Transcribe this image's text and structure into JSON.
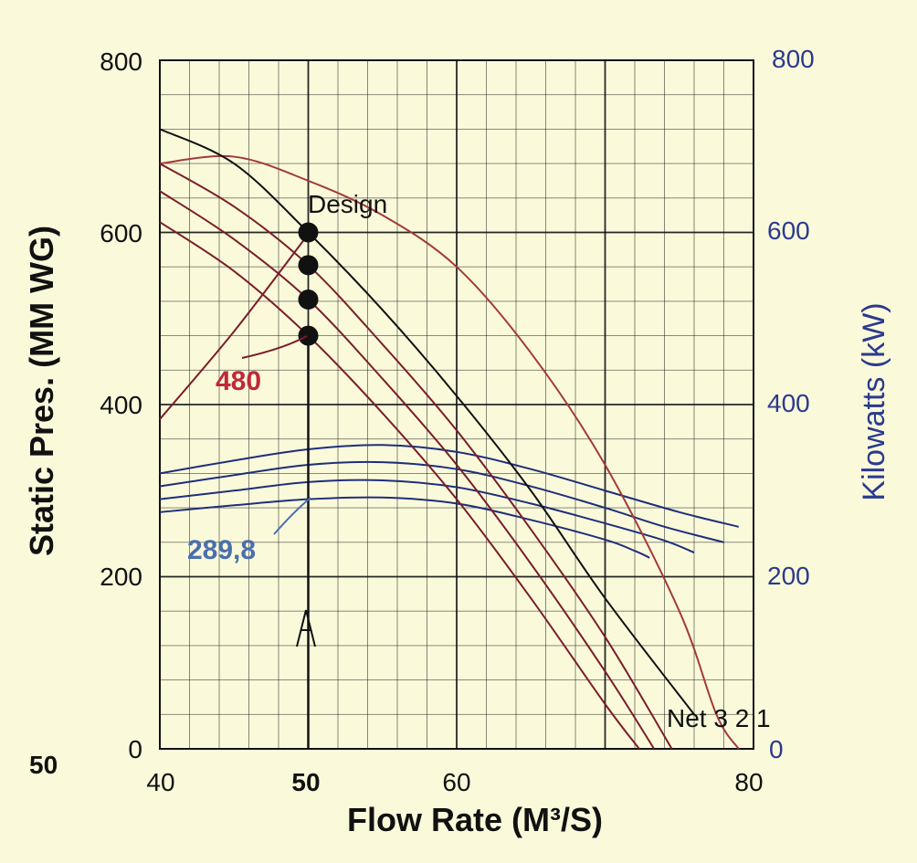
{
  "colors": {
    "background": "#fafadb",
    "grid": "#111111",
    "pressure_curve": "#7a1e2a",
    "design_curve": "#a33a3a",
    "system_curve": "#111111",
    "power_curve": "#1e2f7a",
    "right_axis_text": "#2b3a8c",
    "label_480": "#c0283a",
    "label_289": "#4a6fae"
  },
  "chart_data": {
    "type": "line",
    "title": "",
    "xlabel": "Flow Rate (M³/S)",
    "ylabel_left": "Static Pres. (MM WG)",
    "ylabel_right": "Kilowatts (kW)",
    "xlim": [
      40,
      80
    ],
    "ylim_left": [
      0,
      800
    ],
    "ylim_right": [
      0,
      800
    ],
    "x_ticks": [
      "40",
      "50",
      "60",
      "80"
    ],
    "y_left_ticks": [
      "0",
      "200",
      "400",
      "600",
      "800"
    ],
    "y_right_ticks": [
      "0",
      "200",
      "400",
      "600",
      "800"
    ],
    "grid": true,
    "pressure_series": [
      {
        "name": "Net",
        "points": [
          [
            40,
            720
          ],
          [
            45,
            680
          ],
          [
            50,
            600
          ],
          [
            55,
            510
          ],
          [
            60,
            410
          ],
          [
            65,
            300
          ],
          [
            70,
            175
          ],
          [
            76,
            40
          ]
        ]
      },
      {
        "name": "3",
        "points": [
          [
            40,
            680
          ],
          [
            45,
            630
          ],
          [
            50,
            562
          ],
          [
            55,
            470
          ],
          [
            60,
            370
          ],
          [
            65,
            255
          ],
          [
            70,
            130
          ],
          [
            74.5,
            0
          ]
        ]
      },
      {
        "name": "2",
        "points": [
          [
            40,
            648
          ],
          [
            45,
            592
          ],
          [
            50,
            522
          ],
          [
            55,
            430
          ],
          [
            60,
            330
          ],
          [
            65,
            215
          ],
          [
            70,
            90
          ],
          [
            73.3,
            0
          ]
        ]
      },
      {
        "name": "1",
        "points": [
          [
            40,
            612
          ],
          [
            45,
            555
          ],
          [
            50,
            480
          ],
          [
            55,
            390
          ],
          [
            60,
            290
          ],
          [
            65,
            175
          ],
          [
            70,
            52
          ],
          [
            72.3,
            0
          ]
        ]
      }
    ],
    "design_curve": {
      "points": [
        [
          40,
          680
        ],
        [
          45,
          688
        ],
        [
          50,
          660
        ],
        [
          55,
          620
        ],
        [
          60,
          560
        ],
        [
          65,
          460
        ],
        [
          70,
          330
        ],
        [
          75,
          160
        ],
        [
          77.5,
          40
        ],
        [
          79,
          0
        ]
      ]
    },
    "system_curve": {
      "points": [
        [
          40,
          383
        ],
        [
          45,
          485
        ],
        [
          50,
          598
        ]
      ]
    },
    "power_series": [
      {
        "name": "Net",
        "points": [
          [
            40,
            320
          ],
          [
            45,
            335
          ],
          [
            50,
            348
          ],
          [
            55,
            353
          ],
          [
            60,
            345
          ],
          [
            65,
            325
          ],
          [
            70,
            300
          ],
          [
            75,
            275
          ],
          [
            79,
            258
          ]
        ]
      },
      {
        "name": "3",
        "points": [
          [
            40,
            305
          ],
          [
            45,
            318
          ],
          [
            50,
            330
          ],
          [
            55,
            333
          ],
          [
            60,
            325
          ],
          [
            65,
            305
          ],
          [
            70,
            280
          ],
          [
            74,
            258
          ],
          [
            78,
            240
          ]
        ]
      },
      {
        "name": "2",
        "points": [
          [
            40,
            290
          ],
          [
            45,
            300
          ],
          [
            50,
            310
          ],
          [
            55,
            312
          ],
          [
            60,
            304
          ],
          [
            65,
            285
          ],
          [
            70,
            262
          ],
          [
            74,
            242
          ],
          [
            76,
            228
          ]
        ]
      },
      {
        "name": "1",
        "points": [
          [
            40,
            275
          ],
          [
            45,
            283
          ],
          [
            50,
            290
          ],
          [
            55,
            292
          ],
          [
            60,
            285
          ],
          [
            65,
            266
          ],
          [
            70,
            243
          ],
          [
            72,
            230
          ],
          [
            73,
            222
          ]
        ]
      }
    ],
    "operating_points": [
      {
        "x": 50,
        "y": 600
      },
      {
        "x": 50,
        "y": 562
      },
      {
        "x": 50,
        "y": 522
      },
      {
        "x": 50,
        "y": 480
      }
    ],
    "annotations": {
      "design": "Design",
      "pressure_value": "480",
      "power_value": "289,8",
      "curve_labels": "Net 3 2 1",
      "flow_marker": "50",
      "bottom_left": "50"
    }
  }
}
